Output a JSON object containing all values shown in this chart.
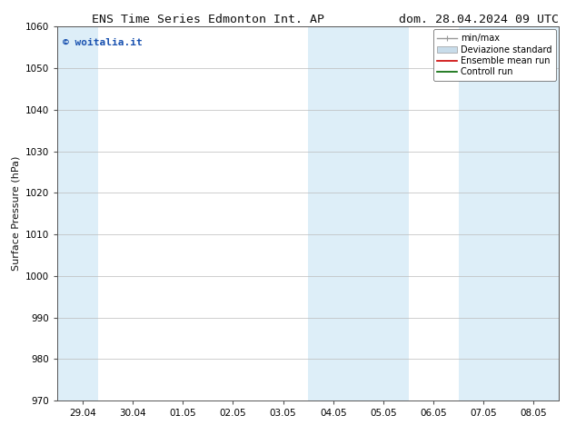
{
  "title_left": "ENS Time Series Edmonton Int. AP",
  "title_right": "dom. 28.04.2024 09 UTC",
  "ylabel": "Surface Pressure (hPa)",
  "ylim": [
    970,
    1060
  ],
  "yticks": [
    970,
    980,
    990,
    1000,
    1010,
    1020,
    1030,
    1040,
    1050,
    1060
  ],
  "xtick_labels": [
    "29.04",
    "30.04",
    "01.05",
    "02.05",
    "03.05",
    "04.05",
    "05.05",
    "06.05",
    "07.05",
    "08.05"
  ],
  "xtick_positions": [
    0,
    1,
    2,
    3,
    4,
    5,
    6,
    7,
    8,
    9
  ],
  "xlim": [
    -0.5,
    9.5
  ],
  "shaded_bands": [
    {
      "xmin": -0.5,
      "xmax": 0.3,
      "color": "#ddeef8"
    },
    {
      "xmin": 4.5,
      "xmax": 5.5,
      "color": "#ddeef8"
    },
    {
      "xmin": 5.5,
      "xmax": 6.5,
      "color": "#ddeef8"
    },
    {
      "xmin": 7.5,
      "xmax": 8.5,
      "color": "#ddeef8"
    },
    {
      "xmin": 8.5,
      "xmax": 9.5,
      "color": "#ddeef8"
    }
  ],
  "watermark_text": "© woitalia.it",
  "watermark_color": "#1a52b0",
  "legend_items": [
    {
      "label": "min/max",
      "color": "#999999",
      "lw": 1.0
    },
    {
      "label": "Deviazione standard",
      "color": "#c8dcea",
      "lw": 6
    },
    {
      "label": "Ensemble mean run",
      "color": "#cc0000",
      "lw": 1.2
    },
    {
      "label": "Controll run",
      "color": "#006600",
      "lw": 1.2
    }
  ],
  "bg_color": "#ffffff",
  "plot_bg": "#ffffff",
  "grid_color": "#bbbbbb",
  "spine_color": "#555555",
  "font_color": "#111111",
  "title_fontsize": 9.5,
  "ylabel_fontsize": 8,
  "tick_fontsize": 7.5,
  "legend_fontsize": 7,
  "watermark_fontsize": 8
}
